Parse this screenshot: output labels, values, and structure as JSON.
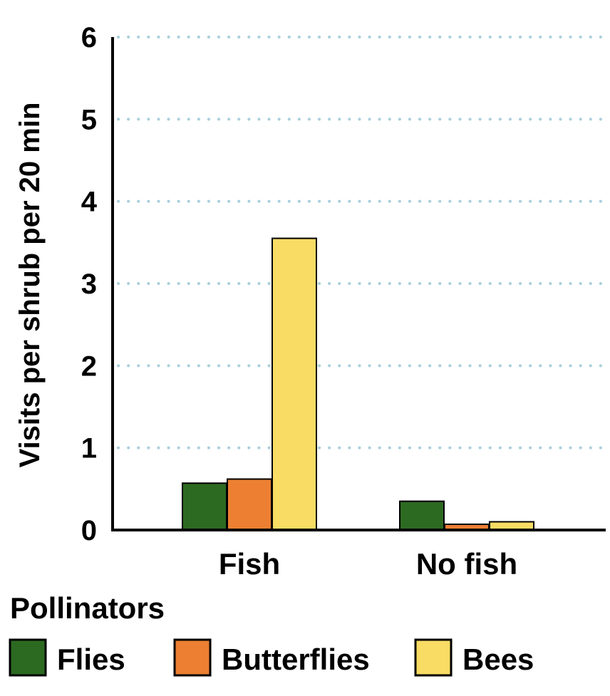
{
  "chart_data": {
    "type": "bar",
    "title": "",
    "xlabel": "",
    "ylabel": "Visits per shrub per 20 min",
    "ylim": [
      0,
      6
    ],
    "yticks": [
      0,
      1,
      2,
      3,
      4,
      5,
      6
    ],
    "grid": true,
    "categories": [
      "Fish",
      "No fish"
    ],
    "series": [
      {
        "name": "Flies",
        "color": "#2d6a21",
        "values": [
          0.57,
          0.35
        ]
      },
      {
        "name": "Butterflies",
        "color": "#ec7f32",
        "values": [
          0.62,
          0.07
        ]
      },
      {
        "name": "Bees",
        "color": "#f8dc64",
        "values": [
          3.55,
          0.1
        ]
      }
    ],
    "legend": {
      "title": "Pollinators",
      "placement": "bottom"
    }
  }
}
